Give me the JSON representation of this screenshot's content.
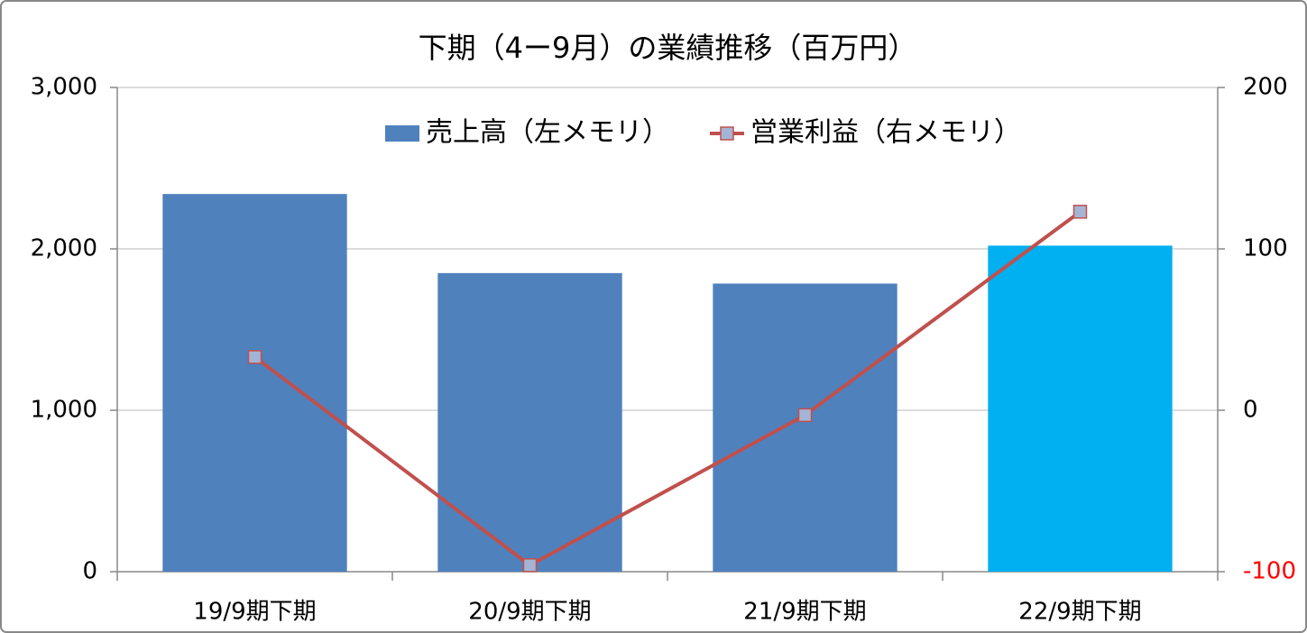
{
  "chart_data": {
    "type": "bar_line",
    "title": "下期（4ー9月）の業績推移（百万円）",
    "categories": [
      "19/9期下期",
      "20/9期下期",
      "21/9期下期",
      "22/9期下期"
    ],
    "series": [
      {
        "name": "売上高（左メモリ）",
        "type": "bar",
        "axis": "y",
        "color": "#4f81bd",
        "colors": [
          "#4f81bd",
          "#4f81bd",
          "#4f81bd",
          "#00b0f0"
        ],
        "values": [
          2340,
          1850,
          1785,
          2020
        ]
      },
      {
        "name": "営業利益（右メモリ）",
        "type": "line",
        "axis": "y2",
        "color": "#c0504d",
        "marker_color": "#a5b4d4",
        "values": [
          33,
          -96,
          -3,
          123
        ]
      }
    ],
    "ylim": [
      0,
      3000
    ],
    "yticks": [
      {
        "value": 0,
        "label": "0"
      },
      {
        "value": 1000,
        "label": "1,000"
      },
      {
        "value": 2000,
        "label": "2,000"
      },
      {
        "value": 3000,
        "label": "3,000"
      }
    ],
    "y2lim": [
      -100,
      200
    ],
    "y2ticks": [
      -100,
      0,
      100,
      200
    ],
    "y2_negative_tick_color": "#ff0000",
    "grid": true,
    "legend": "top"
  }
}
